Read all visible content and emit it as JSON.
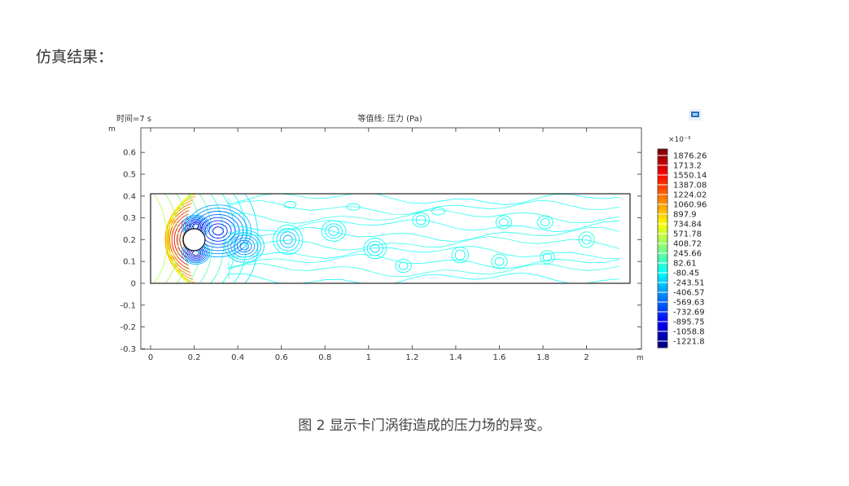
{
  "page": {
    "heading": "仿真结果：",
    "caption": "图 2 显示卡门涡街造成的压力场的异变。"
  },
  "chart_data": {
    "type": "contour",
    "title": "等值线: 压力 (Pa)",
    "time_label": "时间=7 s",
    "x_unit": "m",
    "y_unit": "m",
    "xlim": [
      -0.05,
      2.25
    ],
    "ylim": [
      -0.3,
      0.7
    ],
    "x_ticks": [
      "0",
      "0.2",
      "0.4",
      "0.6",
      "0.8",
      "1",
      "1.2",
      "1.4",
      "1.6",
      "1.8",
      "2"
    ],
    "x_tick_values": [
      0,
      0.2,
      0.4,
      0.6,
      0.8,
      1.0,
      1.2,
      1.4,
      1.6,
      1.8,
      2.0
    ],
    "y_ticks": [
      "0.6",
      "0.5",
      "0.4",
      "0.3",
      "0.2",
      "0.1",
      "0",
      "-0.1",
      "-0.2",
      "-0.3"
    ],
    "y_tick_values": [
      0.6,
      0.5,
      0.4,
      0.3,
      0.2,
      0.1,
      0,
      -0.1,
      -0.2,
      -0.3
    ],
    "channel": {
      "x0": 0,
      "x1": 2.2,
      "y0": 0,
      "y1": 0.41
    },
    "cylinder": {
      "cx": 0.2,
      "cy": 0.2,
      "r": 0.05
    },
    "colorbar": {
      "scale_label": "×10⁻³",
      "levels": [
        "1876.26",
        "1713.2",
        "1550.14",
        "1387.08",
        "1224.02",
        "1060.96",
        "897.9",
        "734.84",
        "571.78",
        "408.72",
        "245.66",
        "82.61",
        "-80.45",
        "-243.51",
        "-406.57",
        "-569.63",
        "-732.69",
        "-895.75",
        "-1058.8",
        "-1221.8"
      ]
    },
    "grid": false,
    "legend_position": "right"
  }
}
